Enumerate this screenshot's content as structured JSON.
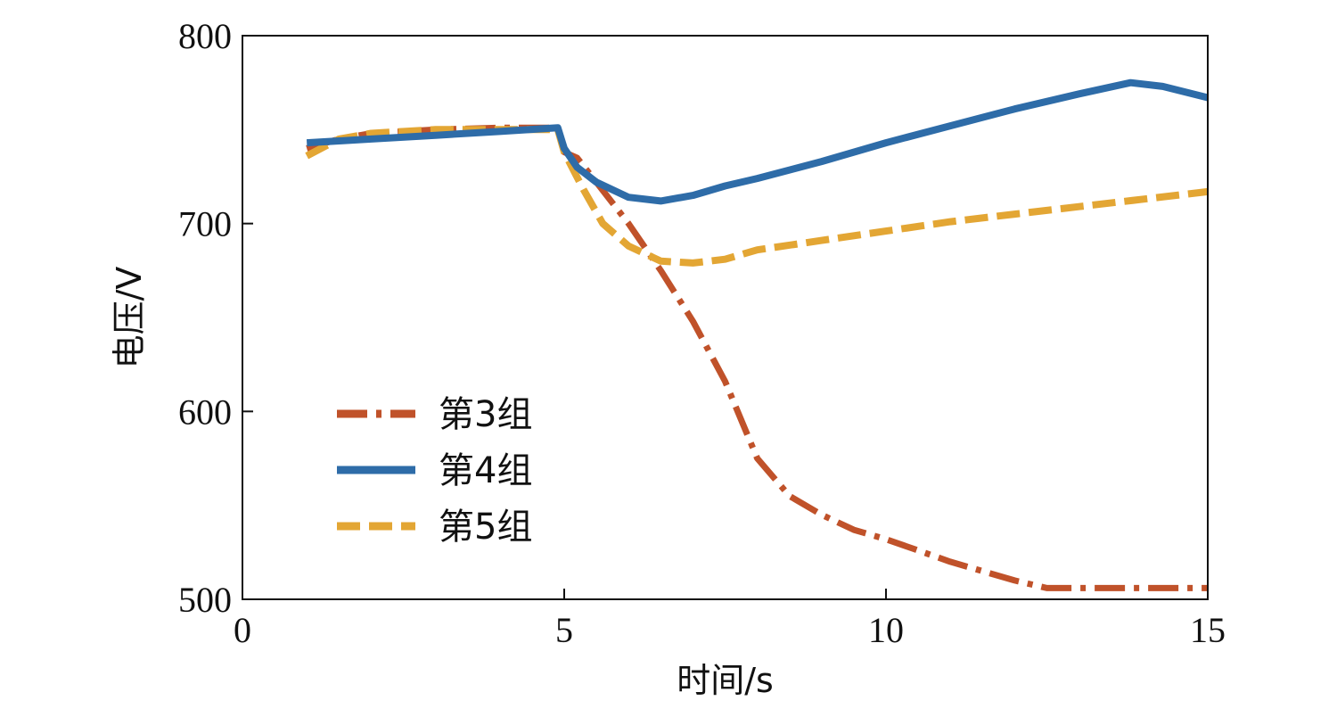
{
  "chart_data": {
    "type": "line",
    "title": "",
    "xlabel": "时间/s",
    "ylabel": "电压/V",
    "xlim": [
      0,
      15
    ],
    "ylim": [
      500,
      800
    ],
    "xticks": [
      0,
      5,
      10,
      15
    ],
    "yticks": [
      500,
      600,
      700,
      800
    ],
    "grid": false,
    "legend_position": "lower-left",
    "series": [
      {
        "name": "第3组",
        "color": "#C0522A",
        "style": "dashdot",
        "points": [
          [
            1.0,
            740
          ],
          [
            1.5,
            745
          ],
          [
            2.0,
            748
          ],
          [
            3.0,
            750
          ],
          [
            4.0,
            751
          ],
          [
            4.9,
            751
          ],
          [
            5.0,
            738
          ],
          [
            5.2,
            735
          ],
          [
            5.5,
            722
          ],
          [
            6.0,
            700
          ],
          [
            6.5,
            675
          ],
          [
            7.0,
            648
          ],
          [
            7.5,
            616
          ],
          [
            8.0,
            575
          ],
          [
            8.5,
            555
          ],
          [
            9.0,
            545
          ],
          [
            9.5,
            537
          ],
          [
            10.0,
            532
          ],
          [
            10.5,
            526
          ],
          [
            11.0,
            520
          ],
          [
            11.5,
            515
          ],
          [
            12.0,
            510
          ],
          [
            12.5,
            506
          ],
          [
            13.0,
            506
          ],
          [
            14.0,
            506
          ],
          [
            15.0,
            506
          ]
        ]
      },
      {
        "name": "第4组",
        "color": "#2E6CA8",
        "style": "solid",
        "points": [
          [
            1.0,
            743
          ],
          [
            1.5,
            744
          ],
          [
            2.0,
            745
          ],
          [
            3.0,
            747
          ],
          [
            4.0,
            749
          ],
          [
            4.9,
            751
          ],
          [
            5.0,
            740
          ],
          [
            5.2,
            730
          ],
          [
            5.5,
            722
          ],
          [
            6.0,
            714
          ],
          [
            6.5,
            712
          ],
          [
            7.0,
            715
          ],
          [
            7.5,
            720
          ],
          [
            8.0,
            724
          ],
          [
            9.0,
            733
          ],
          [
            10.0,
            743
          ],
          [
            11.0,
            752
          ],
          [
            12.0,
            761
          ],
          [
            13.0,
            769
          ],
          [
            13.8,
            775
          ],
          [
            14.3,
            773
          ],
          [
            15.0,
            767
          ]
        ]
      },
      {
        "name": "第5组",
        "color": "#E3A634",
        "style": "dashed",
        "points": [
          [
            1.0,
            736
          ],
          [
            1.5,
            745
          ],
          [
            2.0,
            748
          ],
          [
            3.0,
            750
          ],
          [
            4.0,
            750
          ],
          [
            4.9,
            750
          ],
          [
            5.0,
            738
          ],
          [
            5.3,
            718
          ],
          [
            5.6,
            700
          ],
          [
            6.0,
            688
          ],
          [
            6.5,
            680
          ],
          [
            7.0,
            679
          ],
          [
            7.5,
            681
          ],
          [
            8.0,
            686
          ],
          [
            9.0,
            691
          ],
          [
            10.0,
            696
          ],
          [
            11.0,
            701
          ],
          [
            12.0,
            705
          ],
          [
            13.0,
            709
          ],
          [
            14.0,
            713
          ],
          [
            15.0,
            717
          ]
        ]
      }
    ]
  }
}
